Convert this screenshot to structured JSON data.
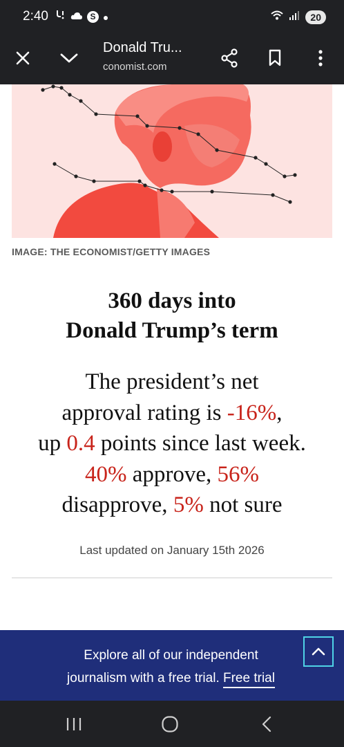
{
  "status_bar": {
    "time": "2:40",
    "battery": "20",
    "icons": [
      "missed-call-icon",
      "cloud-icon",
      "s-app-icon",
      "dot-icon",
      "wifi-icon",
      "signal-icon",
      "battery-icon"
    ]
  },
  "toolbar": {
    "title": "Donald Tru...",
    "url": "conomist.com",
    "icons": [
      "close-icon",
      "chevron-down-icon",
      "share-icon",
      "bookmark-icon",
      "more-vert-icon"
    ]
  },
  "hero": {
    "caption": "IMAGE: THE ECONOMIST/GETTY IMAGES",
    "colors": {
      "background": "#fde1df",
      "tint": "#f4473d"
    }
  },
  "article": {
    "headline_line1": "360 days into",
    "headline_line2": "Donald Trump’s term",
    "summary": {
      "t1": "The president’s net",
      "t2": "approval rating is ",
      "net": "-16%",
      "t3": ",",
      "t4": "up ",
      "change": "0.4",
      "t5": " points since last week.",
      "approve": "40%",
      "t6": " approve, ",
      "disapprove": "56%",
      "t7": "disapprove, ",
      "not_sure": "5%",
      "t8": " not sure"
    },
    "last_updated": "Last updated on January 15th 2026",
    "accent_color": "#c8241b"
  },
  "promo": {
    "line1": "Explore all of our independent",
    "line2_text": "journalism with a free trial. ",
    "link": "Free trial",
    "background": "#1f2e7a"
  },
  "navbar": {
    "icons": [
      "recent-apps-icon",
      "home-icon",
      "back-icon"
    ]
  }
}
